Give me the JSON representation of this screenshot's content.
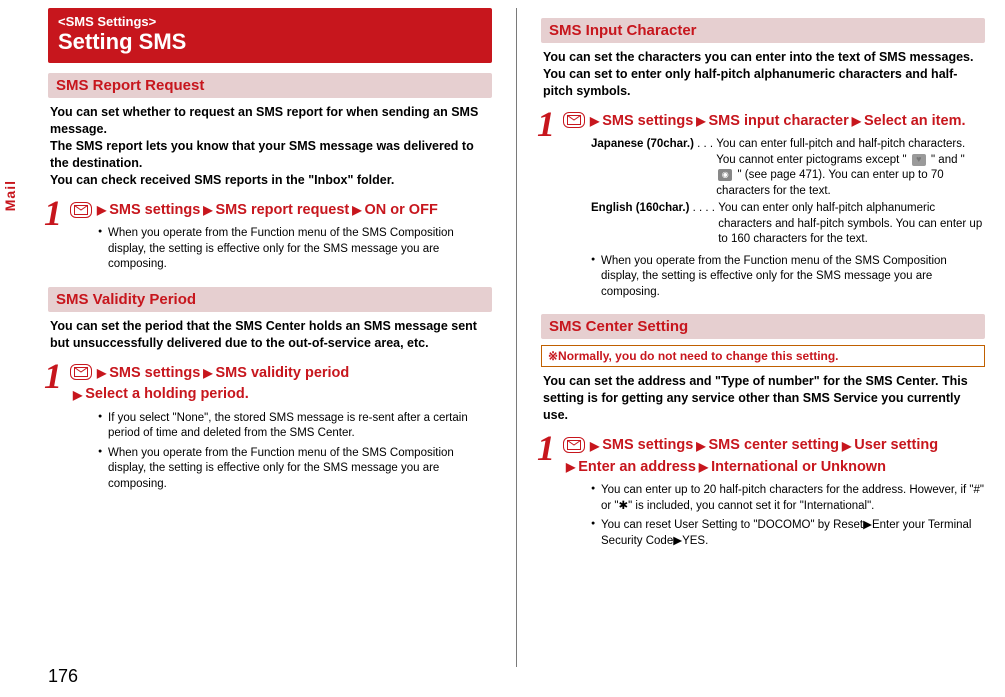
{
  "pageNumber": "176",
  "sideTab": "Mail",
  "colors": {
    "accent": "#c7161d",
    "sectionBg": "#e6cfd0",
    "noteBorder": "#c06000",
    "divider": "#7a7a7a",
    "text": "#000000",
    "white": "#ffffff"
  },
  "left": {
    "banner": {
      "eyebrow": "<SMS Settings>",
      "title": "Setting SMS"
    },
    "sections": [
      {
        "heading": "SMS Report Request",
        "intro": "You can set whether to request an SMS report for when sending an SMS message.\nThe SMS report lets you know that your SMS message was delivered to the destination.\nYou can check received SMS reports in the \"Inbox\" folder.",
        "pathParts": [
          "SMS settings",
          "SMS report request",
          "ON or OFF"
        ],
        "bullets": [
          "When you operate from the Function menu of the SMS Composition display, the setting is effective only for the SMS message you are composing."
        ]
      },
      {
        "heading": "SMS Validity Period",
        "intro": "You can set the period that the SMS Center holds an SMS message sent but unsuccessfully delivered due to the out-of-service area, etc.",
        "pathPartsLines": [
          [
            "SMS settings",
            "SMS validity period"
          ],
          [
            "Select a holding period."
          ]
        ],
        "bullets": [
          "If you select \"None\", the stored SMS message is re-sent after a certain period of time and deleted from the SMS Center.",
          "When you operate from the Function menu of the SMS Composition display, the setting is effective only for the SMS message you are composing."
        ]
      }
    ]
  },
  "right": {
    "sections": [
      {
        "heading": "SMS Input Character",
        "intro": "You can set the characters you can enter into the text of SMS messages. You can set to enter only half-pitch alphanumeric characters and half-pitch symbols.",
        "pathParts": [
          "SMS settings",
          "SMS input character",
          "Select an item."
        ],
        "defs": [
          {
            "term": "Japanese (70char.)",
            "dots": " . . . ",
            "desc": "You can enter full-pitch and half-pitch characters. You cannot enter pictograms except \" {heart} \" and \" {cam} \" (see page 471). You can enter up to 70 characters for the text."
          },
          {
            "term": "English (160char.)",
            "dots": " . . . . ",
            "desc": "You can enter only half-pitch alphanumeric characters and half-pitch symbols. You can enter up to 160 characters for the text."
          }
        ],
        "bullets": [
          "When you operate from the Function menu of the SMS Composition display, the setting is effective only for the SMS message you are composing."
        ]
      },
      {
        "heading": "SMS Center Setting",
        "note": "※Normally, you do not need to change this setting.",
        "intro": "You can set the address and \"Type of number\" for the SMS Center. This setting is for getting any service other than SMS Service you currently use.",
        "pathPartsLines": [
          [
            "SMS settings",
            "SMS center setting",
            "User setting"
          ],
          [
            "Enter an address",
            "International or Unknown"
          ]
        ],
        "bullets": [
          "You can enter up to 20 half-pitch characters for the address. However, if \"#\" or \"✱\" is included, you cannot set it for \"International\".",
          "You can reset User Setting to \"DOCOMO\" by Reset▶Enter your Terminal Security Code▶YES."
        ]
      }
    ]
  }
}
